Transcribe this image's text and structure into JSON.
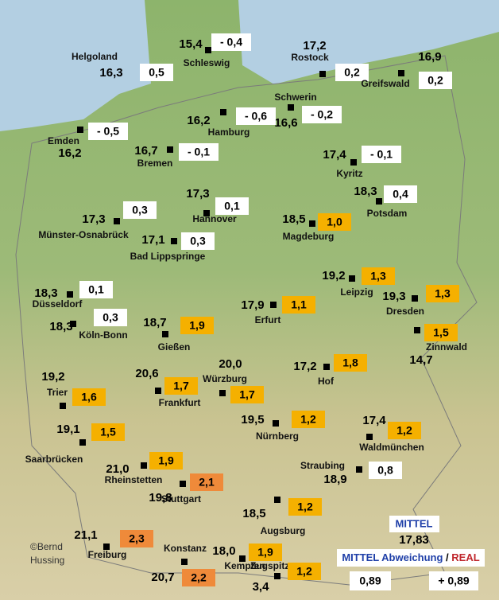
{
  "stations": [
    {
      "name": "Helgoland",
      "temp": "16,3",
      "deviation": "0,5",
      "color": "#ffffff"
    },
    {
      "name": "Schleswig",
      "temp": "15,4",
      "deviation": "- 0,4",
      "color": "#ffffff"
    },
    {
      "name": "Rostock",
      "temp": "17,2",
      "deviation": "0,2",
      "color": "#ffffff"
    },
    {
      "name": "Greifswald",
      "temp": "16,9",
      "deviation": "0,2",
      "color": "#ffffff"
    },
    {
      "name": "Schwerin",
      "temp": "16,6",
      "deviation": "- 0,2",
      "color": "#ffffff"
    },
    {
      "name": "Hamburg",
      "temp": "16,2",
      "deviation": "- 0,6",
      "color": "#ffffff"
    },
    {
      "name": "Emden",
      "temp": "16,2",
      "deviation": "- 0,5",
      "color": "#ffffff"
    },
    {
      "name": "Bremen",
      "temp": "16,7",
      "deviation": "- 0,1",
      "color": "#ffffff"
    },
    {
      "name": "Kyritz",
      "temp": "17,4",
      "deviation": "- 0,1",
      "color": "#ffffff"
    },
    {
      "name": "Potsdam",
      "temp": "18,3",
      "deviation": "0,4",
      "color": "#ffffff"
    },
    {
      "name": "Hannover",
      "temp": "17,3",
      "deviation": "0,1",
      "color": "#ffffff"
    },
    {
      "name": "Münster-Osnabrück",
      "temp": "17,3",
      "deviation": "0,3",
      "color": "#ffffff"
    },
    {
      "name": "Magdeburg",
      "temp": "18,5",
      "deviation": "1,0",
      "color": "#f5b000"
    },
    {
      "name": "Bad Lippspringe",
      "temp": "17,1",
      "deviation": "0,3",
      "color": "#ffffff"
    },
    {
      "name": "Leipzig",
      "temp": "19,2",
      "deviation": "1,3",
      "color": "#f5b000"
    },
    {
      "name": "Düsseldorf",
      "temp": "18,3",
      "deviation": "0,1",
      "color": "#ffffff"
    },
    {
      "name": "Dresden",
      "temp": "19,3",
      "deviation": "1,3",
      "color": "#f5b000"
    },
    {
      "name": "Erfurt",
      "temp": "17,9",
      "deviation": "1,1",
      "color": "#f5b000"
    },
    {
      "name": "Köln-Bonn",
      "temp": "18,3",
      "deviation": "0,3",
      "color": "#ffffff"
    },
    {
      "name": "Zinnwald",
      "temp": "14,7",
      "deviation": "1,5",
      "color": "#f5b000"
    },
    {
      "name": "Gießen",
      "temp": "18,7",
      "deviation": "1,9",
      "color": "#f5b000"
    },
    {
      "name": "Hof",
      "temp": "17,2",
      "deviation": "1,8",
      "color": "#f5b000"
    },
    {
      "name": "Würzburg",
      "temp": "20,0",
      "deviation": "1,7",
      "color": "#f5b000"
    },
    {
      "name": "Frankfurt",
      "temp": "20,6",
      "deviation": "1,7",
      "color": "#f5b000"
    },
    {
      "name": "Trier",
      "temp": "19,2",
      "deviation": "1,6",
      "color": "#f5b000"
    },
    {
      "name": "Nürnberg",
      "temp": "19,5",
      "deviation": "1,2",
      "color": "#f5b000"
    },
    {
      "name": "Waldmünchen",
      "temp": "17,4",
      "deviation": "1,2",
      "color": "#f5b000"
    },
    {
      "name": "Saarbrücken",
      "temp": "19,1",
      "deviation": "1,5",
      "color": "#f5b000"
    },
    {
      "name": "Rheinstetten",
      "temp": "21,0",
      "deviation": "1,9",
      "color": "#f5b000"
    },
    {
      "name": "Straubing",
      "temp": "18,9",
      "deviation": "0,8",
      "color": "#ffffff"
    },
    {
      "name": "Stuttgart",
      "temp": "19,8",
      "deviation": "2,1",
      "color": "#ef8a3a"
    },
    {
      "name": "Augsburg",
      "temp": "18,5",
      "deviation": "1,2",
      "color": "#f5b000"
    },
    {
      "name": "Freiburg",
      "temp": "21,1",
      "deviation": "2,3",
      "color": "#ef8a3a"
    },
    {
      "name": "Konstanz",
      "temp": "20,7",
      "deviation": "2,2",
      "color": "#ef8a3a"
    },
    {
      "name": "Kempten",
      "temp": "18,0",
      "deviation": "1,9",
      "color": "#f5b000"
    },
    {
      "name": "Zugspitze",
      "temp": "3,4",
      "deviation": "1,2",
      "color": "#f5b000"
    }
  ],
  "summary": {
    "mittel_label": "MITTEL",
    "mittel_value": "17,83",
    "deviation_label": "MITTEL Abweichung",
    "separator": "/",
    "real_label": "REAL",
    "deviation": "0,89",
    "real": "+ 0,89"
  },
  "credit": [
    "©Bernd",
    "Hussing"
  ]
}
